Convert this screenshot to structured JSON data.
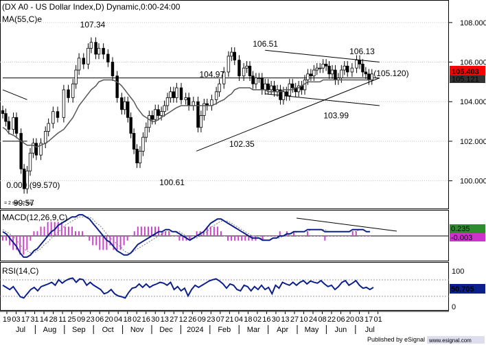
{
  "chart_data": {
    "type": "candlestick",
    "title": "(DX A0 - US Dollar Index,D) Dynamic,0:00-24:00",
    "indicator_label": "MA(55,C)e",
    "price_axis": {
      "ticks": [
        100,
        102,
        104,
        106,
        108
      ],
      "tick_labels": [
        "100.000",
        "102.000",
        "104.000",
        "106.000",
        "108.000"
      ],
      "range": [
        98.6,
        109.0
      ]
    },
    "last_price_label": "105.403",
    "ma_value_label": "105.121",
    "price_series": {
      "x": [
        0,
        2,
        4,
        7,
        9,
        12,
        14,
        16,
        18,
        20,
        22,
        25,
        28,
        30,
        33,
        36,
        40,
        43,
        46,
        48,
        50,
        53,
        56,
        58,
        61,
        63,
        66,
        69,
        72,
        75,
        78,
        80,
        82,
        84,
        86,
        88,
        90,
        92,
        94,
        96,
        98,
        100,
        102,
        104,
        106,
        108,
        110,
        112,
        114,
        117,
        120,
        122,
        125,
        128,
        130,
        132,
        134,
        137,
        140,
        142,
        145,
        148,
        150,
        152,
        155,
        158,
        160,
        162,
        164,
        166,
        168,
        170,
        172,
        174,
        176,
        178,
        180,
        182,
        184,
        186,
        188,
        190,
        192,
        194,
        196,
        198,
        200,
        202,
        204,
        206,
        208,
        210,
        212,
        214,
        216,
        218,
        220,
        222,
        224,
        226,
        229,
        232,
        234,
        236,
        238,
        240,
        242
      ],
      "close": [
        103.4,
        103.0,
        102.6,
        103.2,
        102.4,
        100.6,
        99.6,
        100.5,
        101.4,
        101.9,
        101.3,
        101.9,
        102.5,
        102.9,
        103.5,
        103.2,
        104.6,
        104.2,
        104.9,
        105.6,
        106.2,
        105.9,
        106.7,
        107.0,
        106.4,
        106.7,
        106.4,
        106.0,
        105.3,
        104.2,
        103.6,
        104.0,
        103.2,
        102.4,
        101.6,
        100.9,
        101.5,
        102.2,
        102.7,
        103.3,
        103.1,
        103.6,
        103.3,
        103.5,
        103.8,
        104.2,
        104.5,
        104.2,
        104.7,
        104.1,
        104.2,
        103.8,
        104.0,
        102.7,
        103.3,
        103.9,
        103.8,
        104.1,
        104.5,
        104.9,
        105.5,
        106.3,
        106.5,
        106.1,
        105.3,
        105.7,
        105.8,
        105.3,
        104.9,
        105.2,
        105.2,
        104.6,
        104.9,
        104.6,
        104.8,
        104.5,
        104.6,
        104.1,
        104.5,
        104.3,
        104.9,
        104.7,
        104.5,
        104.8,
        104.6,
        105.1,
        105.4,
        105.3,
        105.6,
        105.7,
        105.7,
        105.9,
        105.8,
        105.4,
        105.6,
        105.1,
        105.2,
        105.6,
        105.8,
        105.5,
        105.7,
        106.1,
        105.9,
        105.5,
        105.4,
        105.1,
        105.4
      ],
      "ma55": [
        102.7,
        102.6,
        102.4,
        102.3,
        102.2,
        102.0,
        101.9,
        101.8,
        101.8,
        101.8,
        101.7,
        101.8,
        101.9,
        102.0,
        102.2,
        102.4,
        102.6,
        102.9,
        103.2,
        103.5,
        103.8,
        104.1,
        104.4,
        104.6,
        104.8,
        105.0,
        105.1,
        105.1,
        105.1,
        105.0,
        104.8,
        104.6,
        104.4,
        104.2,
        104.0,
        103.7,
        103.5,
        103.3,
        103.2,
        103.1,
        103.0,
        103.0,
        103.1,
        103.2,
        103.3,
        103.4,
        103.5,
        103.6,
        103.7,
        103.8,
        103.8,
        103.8,
        103.8,
        103.8,
        103.8,
        103.8,
        103.8,
        103.8,
        103.9,
        104.0,
        104.1,
        104.3,
        104.4,
        104.6,
        104.7,
        104.7,
        104.7,
        104.7,
        104.6,
        104.6,
        104.6,
        104.6,
        104.6,
        104.5,
        104.5,
        104.5,
        104.5,
        104.5,
        104.6,
        104.6,
        104.6,
        104.6,
        104.7,
        104.7,
        104.8,
        104.9,
        105.0,
        105.0,
        105.0,
        105.0,
        105.0,
        105.1,
        105.1,
        105.1,
        105.1,
        105.1,
        105.1,
        105.1,
        105.1,
        105.1,
        105.1,
        105.1,
        105.1,
        105.1,
        105.1,
        105.1,
        105.1
      ]
    },
    "price_annotations": [
      {
        "text": "107.34",
        "x": 57,
        "price": 107.34
      },
      {
        "text": "104.97",
        "x": 137,
        "price": 104.97
      },
      {
        "text": "106.51",
        "x": 172,
        "price": 106.51
      },
      {
        "text": "106.13",
        "x": 230,
        "price": 106.13
      },
      {
        "text": "(105.120)",
        "x": 244,
        "price": 105.12
      },
      {
        "text": "103.99",
        "x": 213,
        "price": 103.99
      },
      {
        "text": "102.35",
        "x": 153,
        "price": 102.35
      },
      {
        "text": "100.61",
        "x": 109,
        "price": 100.61
      },
      {
        "text": "0.000 (99.570)",
        "x": 6,
        "price": 99.57
      },
      {
        "text": "99.57",
        "x": 8,
        "price": 99.57
      }
    ],
    "trend_lines": [
      {
        "from": [
          0,
          105.2
        ],
        "to": [
          247,
          105.2
        ]
      },
      {
        "from": [
          0,
          104.6
        ],
        "to": [
          16,
          104.1
        ]
      },
      {
        "from": [
          0,
          102.0
        ],
        "to": [
          16,
          102.0
        ]
      },
      {
        "from": [
          172,
          106.6
        ],
        "to": [
          247,
          106.0
        ]
      },
      {
        "from": [
          172,
          104.4
        ],
        "to": [
          247,
          103.8
        ]
      },
      {
        "from": [
          127,
          101.5
        ],
        "to": [
          247,
          105.2
        ]
      }
    ],
    "macd": {
      "label": "MACD(12,26,9,C)",
      "value_labels": [
        "0.235",
        "-0.003"
      ],
      "range": [
        -1.1,
        1.1
      ],
      "line": [
        0.2,
        0.1,
        -0.1,
        -0.3,
        -0.5,
        -0.8,
        -1.0,
        -1.0,
        -0.9,
        -0.7,
        -0.6,
        -0.4,
        -0.2,
        0.0,
        0.2,
        0.3,
        0.5,
        0.6,
        0.7,
        0.8,
        0.9,
        0.9,
        1.0,
        1.0,
        0.9,
        0.8,
        0.6,
        0.4,
        0.2,
        0.0,
        -0.2,
        -0.3,
        -0.5,
        -0.7,
        -0.8,
        -0.9,
        -0.9,
        -0.8,
        -0.6,
        -0.4,
        -0.3,
        -0.2,
        -0.1,
        0.0,
        0.1,
        0.2,
        0.2,
        0.3,
        0.3,
        0.2,
        0.2,
        0.1,
        0.0,
        -0.1,
        -0.2,
        -0.1,
        0.0,
        0.1,
        0.2,
        0.4,
        0.6,
        0.7,
        0.8,
        0.8,
        0.7,
        0.6,
        0.5,
        0.4,
        0.3,
        0.2,
        0.1,
        0.0,
        -0.1,
        -0.1,
        -0.1,
        -0.2,
        -0.2,
        -0.2,
        -0.1,
        -0.1,
        0.0,
        0.0,
        0.1,
        0.1,
        0.2,
        0.2,
        0.2,
        0.2,
        0.3,
        0.3,
        0.3,
        0.3,
        0.3,
        0.2,
        0.2,
        0.2,
        0.2,
        0.2,
        0.2,
        0.2,
        0.2,
        0.3,
        0.3,
        0.3,
        0.3,
        0.2,
        0.2
      ],
      "signal": [
        0.3,
        0.2,
        0.1,
        0.0,
        -0.2,
        -0.4,
        -0.6,
        -0.7,
        -0.8,
        -0.8,
        -0.7,
        -0.6,
        -0.4,
        -0.3,
        -0.1,
        0.0,
        0.2,
        0.3,
        0.5,
        0.6,
        0.7,
        0.8,
        0.9,
        0.9,
        0.9,
        0.9,
        0.8,
        0.6,
        0.5,
        0.3,
        0.1,
        -0.1,
        -0.2,
        -0.4,
        -0.5,
        -0.7,
        -0.8,
        -0.8,
        -0.7,
        -0.6,
        -0.5,
        -0.4,
        -0.3,
        -0.2,
        -0.1,
        0.0,
        0.1,
        0.2,
        0.2,
        0.2,
        0.2,
        0.2,
        0.1,
        0.0,
        -0.1,
        -0.1,
        -0.1,
        0.0,
        0.1,
        0.2,
        0.4,
        0.5,
        0.6,
        0.7,
        0.7,
        0.7,
        0.6,
        0.5,
        0.4,
        0.3,
        0.2,
        0.1,
        0.0,
        0.0,
        -0.1,
        -0.1,
        -0.2,
        -0.2,
        -0.1,
        -0.1,
        -0.1,
        0.0,
        0.0,
        0.1,
        0.1,
        0.2,
        0.2,
        0.2,
        0.2,
        0.3,
        0.3,
        0.3,
        0.3,
        0.3,
        0.2,
        0.2,
        0.2,
        0.2,
        0.2,
        0.2,
        0.2,
        0.2,
        0.2,
        0.3,
        0.3,
        0.2,
        0.2
      ]
    },
    "rsi": {
      "label": "RSI(14,C)",
      "value_label": "50.705",
      "ticks": [
        0,
        100
      ],
      "range": [
        0,
        100
      ],
      "values": [
        55,
        50,
        45,
        52,
        40,
        28,
        25,
        35,
        45,
        50,
        42,
        52,
        55,
        58,
        62,
        55,
        68,
        60,
        66,
        70,
        72,
        62,
        70,
        68,
        55,
        62,
        55,
        50,
        45,
        35,
        38,
        45,
        35,
        30,
        28,
        25,
        38,
        48,
        50,
        58,
        50,
        58,
        50,
        55,
        58,
        62,
        60,
        55,
        62,
        45,
        52,
        42,
        48,
        30,
        45,
        55,
        50,
        55,
        60,
        65,
        68,
        70,
        65,
        58,
        48,
        58,
        55,
        45,
        42,
        55,
        52,
        42,
        52,
        45,
        55,
        45,
        50,
        35,
        55,
        48,
        62,
        58,
        55,
        62,
        55,
        62,
        66,
        58,
        65,
        62,
        60,
        66,
        58,
        52,
        55,
        45,
        52,
        62,
        66,
        55,
        60,
        66,
        55,
        48,
        50,
        45,
        50
      ]
    },
    "x_axis": {
      "ticks": [
        "19",
        "03",
        "17",
        "31",
        "14",
        "28",
        "11",
        "25",
        "09",
        "23",
        "06",
        "20",
        "04",
        "18",
        "02",
        "16",
        "30",
        "13",
        "27",
        "12",
        "26",
        "09",
        "23",
        "07",
        "21",
        "04",
        "18",
        "02",
        "16",
        "30",
        "13",
        "27",
        "10",
        "24",
        "08",
        "22",
        "06",
        "20",
        "03",
        "17",
        "01"
      ],
      "months": [
        "Jul",
        "Aug",
        "Sep",
        "Oct",
        "Nov",
        "Dec",
        "2024",
        "Feb",
        "Mar",
        "Apr",
        "May",
        "Jun",
        "Jul"
      ]
    }
  },
  "footer": {
    "publisher": "Published by eSignal",
    "watermark": "www.esignal.com"
  },
  "axis_small_note": "= 2 sec. 2 log."
}
